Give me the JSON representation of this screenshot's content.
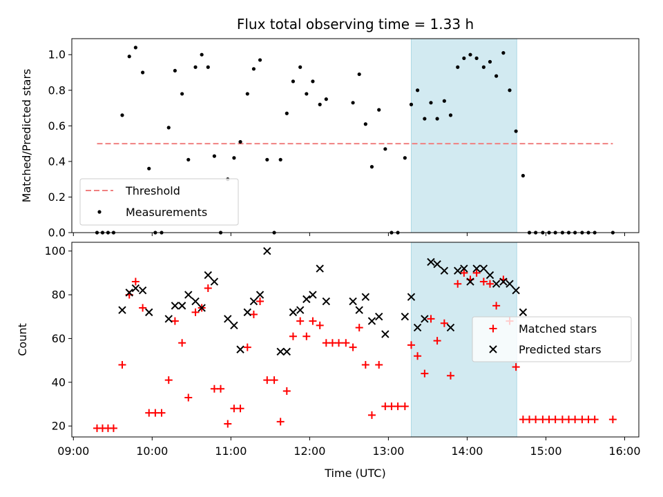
{
  "chart_data": [
    {
      "type": "scatter",
      "title": "Flux total observing time = 1.33 h",
      "ylabel": "Matched/Predicted stars",
      "xlabel": "",
      "x_unit": "hours (UTC)",
      "xlim": [
        8.98,
        16.18
      ],
      "ylim": [
        0,
        1.09
      ],
      "xticks": [
        9,
        10,
        11,
        12,
        13,
        14,
        15,
        16
      ],
      "xticklabels": [],
      "yticks": [
        0.0,
        0.2,
        0.4,
        0.6,
        0.8,
        1.0
      ],
      "yticklabels": [
        "0.0",
        "0.2",
        "0.4",
        "0.6",
        "0.8",
        "1.0"
      ],
      "grid": false,
      "legend_position": "lower-left",
      "highlight_band": {
        "x_start": 13.29,
        "x_end": 14.63,
        "color": "#add8e6"
      },
      "threshold": {
        "name": "Threshold",
        "value": 0.5,
        "x_start": 9.3,
        "x_end": 15.85,
        "color": "#f08080"
      },
      "series": [
        {
          "name": "Measurements",
          "marker": "dot",
          "color": "#000000",
          "points": [
            [
              9.3,
              0
            ],
            [
              9.37,
              0
            ],
            [
              9.44,
              0
            ],
            [
              9.51,
              0
            ],
            [
              9.62,
              0.66
            ],
            [
              9.71,
              0.99
            ],
            [
              9.79,
              1.04
            ],
            [
              9.88,
              0.9
            ],
            [
              9.96,
              0.36
            ],
            [
              10.04,
              0
            ],
            [
              10.12,
              0
            ],
            [
              10.21,
              0.59
            ],
            [
              10.29,
              0.91
            ],
            [
              10.38,
              0.78
            ],
            [
              10.46,
              0.41
            ],
            [
              10.55,
              0.93
            ],
            [
              10.63,
              1.0
            ],
            [
              10.71,
              0.93
            ],
            [
              10.79,
              0.43
            ],
            [
              10.87,
              0
            ],
            [
              10.96,
              0.3
            ],
            [
              11.04,
              0.42
            ],
            [
              11.12,
              0.51
            ],
            [
              11.21,
              0.78
            ],
            [
              11.29,
              0.92
            ],
            [
              11.37,
              0.97
            ],
            [
              11.46,
              0.41
            ],
            [
              11.55,
              0
            ],
            [
              11.63,
              0.41
            ],
            [
              11.71,
              0.67
            ],
            [
              11.79,
              0.85
            ],
            [
              11.88,
              0.93
            ],
            [
              11.96,
              0.78
            ],
            [
              12.04,
              0.85
            ],
            [
              12.13,
              0.72
            ],
            [
              12.21,
              0.75
            ],
            [
              12.63,
              0.89
            ],
            [
              12.55,
              0.73
            ],
            [
              12.71,
              0.61
            ],
            [
              12.79,
              0.37
            ],
            [
              12.88,
              0.69
            ],
            [
              12.96,
              0.47
            ],
            [
              13.04,
              0
            ],
            [
              13.12,
              0
            ],
            [
              13.21,
              0.42
            ],
            [
              13.29,
              0.72
            ],
            [
              13.37,
              0.8
            ],
            [
              13.46,
              0.64
            ],
            [
              13.54,
              0.73
            ],
            [
              13.62,
              0.64
            ],
            [
              13.71,
              0.74
            ],
            [
              13.79,
              0.66
            ],
            [
              13.88,
              0.93
            ],
            [
              13.96,
              0.98
            ],
            [
              14.04,
              1.0
            ],
            [
              14.12,
              0.98
            ],
            [
              14.21,
              0.93
            ],
            [
              14.29,
              0.96
            ],
            [
              14.37,
              0.88
            ],
            [
              14.46,
              1.01
            ],
            [
              14.54,
              0.8
            ],
            [
              14.62,
              0.57
            ],
            [
              14.71,
              0.32
            ],
            [
              14.79,
              0
            ],
            [
              14.87,
              0
            ],
            [
              14.96,
              0
            ],
            [
              15.04,
              0
            ],
            [
              15.12,
              0
            ],
            [
              15.21,
              0
            ],
            [
              15.29,
              0
            ],
            [
              15.37,
              0
            ],
            [
              15.46,
              0
            ],
            [
              15.54,
              0
            ],
            [
              15.62,
              0
            ],
            [
              15.85,
              0
            ]
          ]
        }
      ]
    },
    {
      "type": "scatter",
      "title": "",
      "ylabel": "Count",
      "xlabel": "Time (UTC)",
      "x_unit": "hours (UTC)",
      "xlim": [
        8.98,
        16.18
      ],
      "ylim": [
        15,
        104
      ],
      "xticks": [
        9,
        10,
        11,
        12,
        13,
        14,
        15,
        16
      ],
      "xticklabels": [
        "09:00",
        "10:00",
        "11:00",
        "12:00",
        "13:00",
        "14:00",
        "15:00",
        "16:00"
      ],
      "yticks": [
        20,
        40,
        60,
        80,
        100
      ],
      "yticklabels": [
        "20",
        "40",
        "60",
        "80",
        "100"
      ],
      "grid": false,
      "legend_position": "center-right",
      "highlight_band": {
        "x_start": 13.29,
        "x_end": 14.63,
        "color": "#add8e6"
      },
      "series": [
        {
          "name": "Matched stars",
          "marker": "plus",
          "color": "#ff0000",
          "points": [
            [
              9.3,
              19
            ],
            [
              9.37,
              19
            ],
            [
              9.44,
              19
            ],
            [
              9.51,
              19
            ],
            [
              9.62,
              48
            ],
            [
              9.71,
              80
            ],
            [
              9.79,
              86
            ],
            [
              9.88,
              74
            ],
            [
              9.96,
              26
            ],
            [
              10.04,
              26
            ],
            [
              10.12,
              26
            ],
            [
              10.21,
              41
            ],
            [
              10.29,
              68
            ],
            [
              10.38,
              58
            ],
            [
              10.46,
              33
            ],
            [
              10.55,
              72
            ],
            [
              10.63,
              74
            ],
            [
              10.71,
              83
            ],
            [
              10.79,
              37
            ],
            [
              10.87,
              37
            ],
            [
              10.96,
              21
            ],
            [
              11.04,
              28
            ],
            [
              11.12,
              28
            ],
            [
              11.21,
              56
            ],
            [
              11.29,
              71
            ],
            [
              11.37,
              77
            ],
            [
              11.46,
              41
            ],
            [
              11.55,
              41
            ],
            [
              11.63,
              22
            ],
            [
              11.71,
              36
            ],
            [
              11.79,
              61
            ],
            [
              11.88,
              68
            ],
            [
              11.96,
              61
            ],
            [
              12.04,
              68
            ],
            [
              12.13,
              66
            ],
            [
              12.21,
              58
            ],
            [
              12.29,
              58
            ],
            [
              12.37,
              58
            ],
            [
              12.46,
              58
            ],
            [
              12.55,
              56
            ],
            [
              12.63,
              65
            ],
            [
              12.71,
              48
            ],
            [
              12.79,
              25
            ],
            [
              12.88,
              48
            ],
            [
              12.96,
              29
            ],
            [
              13.04,
              29
            ],
            [
              13.12,
              29
            ],
            [
              13.21,
              29
            ],
            [
              13.29,
              57
            ],
            [
              13.37,
              52
            ],
            [
              13.46,
              44
            ],
            [
              13.54,
              69
            ],
            [
              13.62,
              59
            ],
            [
              13.71,
              67
            ],
            [
              13.79,
              43
            ],
            [
              13.88,
              85
            ],
            [
              13.96,
              90
            ],
            [
              14.04,
              87
            ],
            [
              14.12,
              90
            ],
            [
              14.21,
              86
            ],
            [
              14.29,
              85
            ],
            [
              14.37,
              75
            ],
            [
              14.46,
              87
            ],
            [
              14.54,
              68
            ],
            [
              14.62,
              47
            ],
            [
              14.71,
              23
            ],
            [
              14.79,
              23
            ],
            [
              14.87,
              23
            ],
            [
              14.96,
              23
            ],
            [
              15.04,
              23
            ],
            [
              15.12,
              23
            ],
            [
              15.21,
              23
            ],
            [
              15.29,
              23
            ],
            [
              15.37,
              23
            ],
            [
              15.46,
              23
            ],
            [
              15.54,
              23
            ],
            [
              15.62,
              23
            ],
            [
              15.85,
              23
            ]
          ]
        },
        {
          "name": "Predicted stars",
          "marker": "x",
          "color": "#000000",
          "points": [
            [
              9.62,
              73
            ],
            [
              9.71,
              81
            ],
            [
              9.79,
              83
            ],
            [
              9.88,
              82
            ],
            [
              9.96,
              72
            ],
            [
              10.21,
              69
            ],
            [
              10.29,
              75
            ],
            [
              10.38,
              75
            ],
            [
              10.46,
              80
            ],
            [
              10.55,
              77
            ],
            [
              10.63,
              74
            ],
            [
              10.71,
              89
            ],
            [
              10.79,
              86
            ],
            [
              10.96,
              69
            ],
            [
              11.04,
              66
            ],
            [
              11.12,
              55
            ],
            [
              11.21,
              72
            ],
            [
              11.29,
              77
            ],
            [
              11.37,
              80
            ],
            [
              11.46,
              100
            ],
            [
              11.63,
              54
            ],
            [
              11.71,
              54
            ],
            [
              11.79,
              72
            ],
            [
              11.88,
              73
            ],
            [
              11.96,
              78
            ],
            [
              12.04,
              80
            ],
            [
              12.13,
              92
            ],
            [
              12.21,
              77
            ],
            [
              12.55,
              77
            ],
            [
              12.63,
              73
            ],
            [
              12.71,
              79
            ],
            [
              12.79,
              68
            ],
            [
              12.88,
              70
            ],
            [
              12.96,
              62
            ],
            [
              13.21,
              70
            ],
            [
              13.29,
              79
            ],
            [
              13.37,
              65
            ],
            [
              13.46,
              69
            ],
            [
              13.54,
              95
            ],
            [
              13.62,
              94
            ],
            [
              13.71,
              91
            ],
            [
              13.79,
              65
            ],
            [
              13.88,
              91
            ],
            [
              13.96,
              92
            ],
            [
              14.04,
              86
            ],
            [
              14.12,
              92
            ],
            [
              14.21,
              92
            ],
            [
              14.29,
              89
            ],
            [
              14.37,
              85
            ],
            [
              14.46,
              86
            ],
            [
              14.54,
              85
            ],
            [
              14.62,
              82
            ],
            [
              14.71,
              72
            ]
          ]
        }
      ]
    }
  ]
}
